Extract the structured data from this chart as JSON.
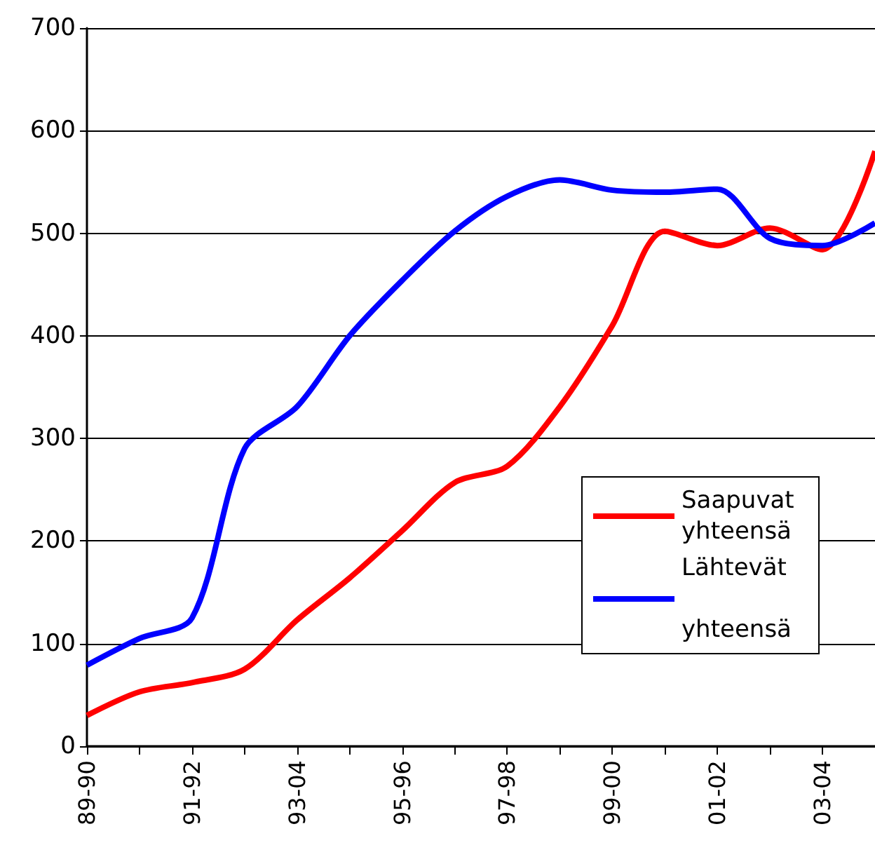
{
  "chart_data": {
    "type": "line",
    "categories": [
      "89-90",
      null,
      "91-92",
      null,
      "93-04",
      null,
      "95-96",
      null,
      "97-98",
      null,
      "99-00",
      null,
      "01-02",
      null,
      "03-04",
      null
    ],
    "series": [
      {
        "name": "Saapuvat yhteensä",
        "color": "#ff0000",
        "values": [
          30,
          53,
          62,
          75,
          123,
          164,
          210,
          257,
          273,
          331,
          410,
          502,
          488,
          505,
          484,
          580
        ]
      },
      {
        "name": "Lähtevät yhteensä",
        "color": "#0000ff",
        "values": [
          79,
          105,
          125,
          290,
          331,
          400,
          454,
          502,
          536,
          552,
          542,
          540,
          543,
          495,
          488,
          510
        ]
      }
    ],
    "ylim": [
      0,
      700
    ],
    "yticks": [
      0,
      100,
      200,
      300,
      400,
      500,
      600,
      700
    ],
    "grid": "y",
    "legend": "right",
    "marker": "none",
    "line_style": "solid"
  }
}
